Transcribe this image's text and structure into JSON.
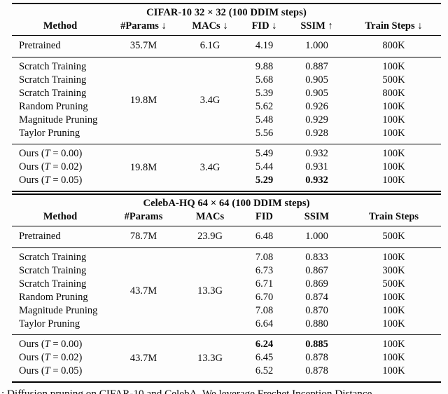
{
  "t1": {
    "title": "CIFAR-10 32 × 32 (100 DDIM steps)",
    "headers": [
      "Method",
      "#Params ↓",
      "MACs ↓",
      "FID ↓",
      "SSIM ↑",
      "Train Steps ↓"
    ],
    "pretrained": {
      "method": "Pretrained",
      "params": "35.7M",
      "macs": "6.1G",
      "fid": "4.19",
      "ssim": "1.000",
      "steps": "800K"
    },
    "baseline_params": "19.8M",
    "baseline_macs": "3.4G",
    "baselines": [
      {
        "method": "Scratch Training",
        "fid": "9.88",
        "ssim": "0.887",
        "steps": "100K"
      },
      {
        "method": "Scratch Training",
        "fid": "5.68",
        "ssim": "0.905",
        "steps": "500K"
      },
      {
        "method": "Scratch Training",
        "fid": "5.39",
        "ssim": "0.905",
        "steps": "800K"
      },
      {
        "method": "Random Pruning",
        "fid": "5.62",
        "ssim": "0.926",
        "steps": "100K"
      },
      {
        "method": "Magnitude Pruning",
        "fid": "5.48",
        "ssim": "0.929",
        "steps": "100K"
      },
      {
        "method": "Taylor Pruning",
        "fid": "5.56",
        "ssim": "0.928",
        "steps": "100K"
      }
    ],
    "ours_params": "19.8M",
    "ours_macs": "3.4G",
    "ours": [
      {
        "pre": "Ours (",
        "cal": "T",
        "post": " = 0.00)",
        "fid": "5.49",
        "ssim": "0.932",
        "steps": "100K"
      },
      {
        "pre": "Ours (",
        "cal": "T",
        "post": " = 0.02)",
        "fid": "5.44",
        "ssim": "0.931",
        "steps": "100K"
      },
      {
        "pre": "Ours (",
        "cal": "T",
        "post": " = 0.05)",
        "fid": "5.29",
        "ssim": "0.932",
        "steps": "100K"
      }
    ]
  },
  "t2": {
    "title": "CelebA-HQ 64 × 64 (100 DDIM steps)",
    "headers": [
      "Method",
      "#Params",
      "MACs",
      "FID",
      "SSIM",
      "Train Steps"
    ],
    "pretrained": {
      "method": "Pretrained",
      "params": "78.7M",
      "macs": "23.9G",
      "fid": "6.48",
      "ssim": "1.000",
      "steps": "500K"
    },
    "baseline_params": "43.7M",
    "baseline_macs": "13.3G",
    "baselines": [
      {
        "method": "Scratch Training",
        "fid": "7.08",
        "ssim": "0.833",
        "steps": "100K"
      },
      {
        "method": "Scratch Training",
        "fid": "6.73",
        "ssim": "0.867",
        "steps": "300K"
      },
      {
        "method": "Scratch Training",
        "fid": "6.71",
        "ssim": "0.869",
        "steps": "500K"
      },
      {
        "method": "Random Pruning",
        "fid": "6.70",
        "ssim": "0.874",
        "steps": "100K"
      },
      {
        "method": "Magnitude Pruning",
        "fid": "7.08",
        "ssim": "0.870",
        "steps": "100K"
      },
      {
        "method": "Taylor Pruning",
        "fid": "6.64",
        "ssim": "0.880",
        "steps": "100K"
      }
    ],
    "ours_params": "43.7M",
    "ours_macs": "13.3G",
    "ours": [
      {
        "pre": "Ours (",
        "cal": "T",
        "post": " = 0.00)",
        "fid": "6.24",
        "ssim": "0.885",
        "steps": "100K"
      },
      {
        "pre": "Ours (",
        "cal": "T",
        "post": " = 0.02)",
        "fid": "6.45",
        "ssim": "0.878",
        "steps": "100K"
      },
      {
        "pre": "Ours (",
        "cal": "T",
        "post": " = 0.05)",
        "fid": "6.52",
        "ssim": "0.878",
        "steps": "100K"
      }
    ]
  },
  "caption": ": Diffusion pruning on CIFAR-10 and CelebA. We leverage Frechet Inception Distance"
}
